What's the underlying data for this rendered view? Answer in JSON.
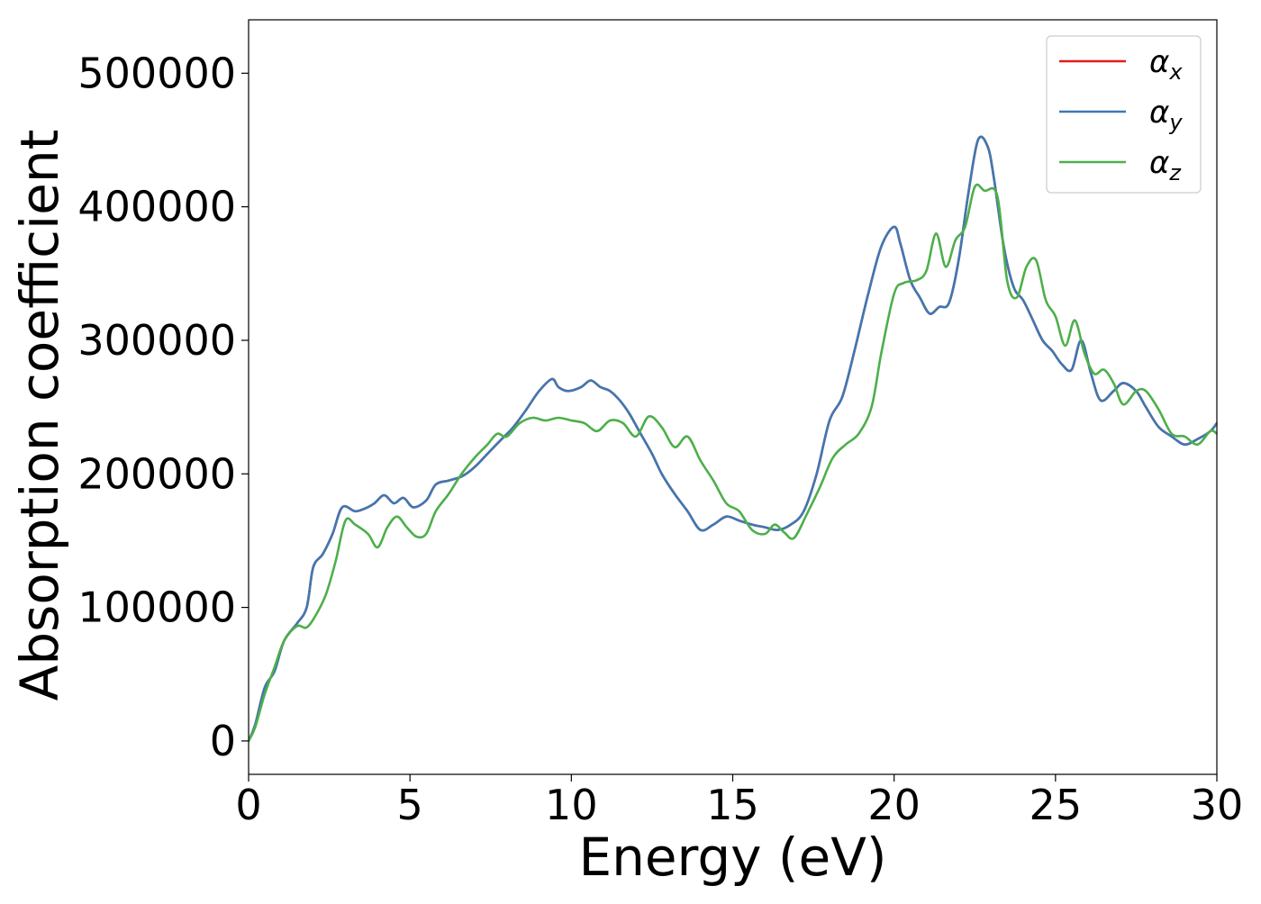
{
  "chart_data": {
    "type": "line",
    "title": "",
    "xlabel": "Energy (eV)",
    "ylabel": "Absorption coefficient",
    "xlim": [
      0,
      30
    ],
    "ylim": [
      -25000,
      540000
    ],
    "grid": false,
    "legend_position": "top-right",
    "x_ticks": [
      0,
      5,
      10,
      15,
      20,
      25,
      30
    ],
    "x_tick_labels": [
      "0",
      "5",
      "10",
      "15",
      "20",
      "25",
      "30"
    ],
    "y_ticks": [
      0,
      100000,
      200000,
      300000,
      400000,
      500000
    ],
    "y_tick_labels": [
      "0",
      "100000",
      "200000",
      "300000",
      "400000",
      "500000"
    ],
    "series": [
      {
        "name": "α",
        "subscript": "x",
        "color": "#e41a1c",
        "x": [
          0,
          0.2,
          0.5,
          0.8,
          1.1,
          1.5,
          1.8,
          2.0,
          2.3,
          2.6,
          2.9,
          3.3,
          3.6,
          3.9,
          4.2,
          4.5,
          4.8,
          5.1,
          5.5,
          5.8,
          6.2,
          6.6,
          7.0,
          7.4,
          7.8,
          8.2,
          8.6,
          9.0,
          9.4,
          9.6,
          9.9,
          10.3,
          10.6,
          10.9,
          11.2,
          11.5,
          11.8,
          12.1,
          12.5,
          12.8,
          13.2,
          13.6,
          14.0,
          14.4,
          14.8,
          15.2,
          15.6,
          16.0,
          16.4,
          16.8,
          17.2,
          17.6,
          18.0,
          18.4,
          18.8,
          19.2,
          19.6,
          20.0,
          20.2,
          20.5,
          20.8,
          21.1,
          21.4,
          21.7,
          22.0,
          22.3,
          22.6,
          22.9,
          23.1,
          23.4,
          23.7,
          24.0,
          24.3,
          24.6,
          24.9,
          25.2,
          25.5,
          25.8,
          26.1,
          26.4,
          26.8,
          27.1,
          27.5,
          27.8,
          28.2,
          28.6,
          29.0,
          29.4,
          29.8,
          30.0
        ],
        "values": [
          0,
          12000,
          40000,
          52000,
          75000,
          88000,
          100000,
          130000,
          140000,
          155000,
          175000,
          172000,
          174000,
          178000,
          184000,
          178000,
          182000,
          175000,
          180000,
          192000,
          195000,
          198000,
          205000,
          215000,
          225000,
          235000,
          248000,
          262000,
          271000,
          265000,
          262000,
          265000,
          270000,
          265000,
          262000,
          255000,
          245000,
          232000,
          215000,
          200000,
          185000,
          172000,
          158000,
          162000,
          168000,
          165000,
          162000,
          160000,
          158000,
          162000,
          172000,
          200000,
          240000,
          258000,
          295000,
          335000,
          370000,
          385000,
          372000,
          345000,
          332000,
          320000,
          325000,
          328000,
          360000,
          410000,
          450000,
          445000,
          420000,
          370000,
          340000,
          330000,
          315000,
          300000,
          292000,
          282000,
          278000,
          300000,
          275000,
          255000,
          262000,
          268000,
          262000,
          250000,
          235000,
          228000,
          222000,
          226000,
          232000,
          238000
        ]
      },
      {
        "name": "α",
        "subscript": "y",
        "color": "#3e78b2",
        "x": [
          0,
          0.2,
          0.5,
          0.8,
          1.1,
          1.5,
          1.8,
          2.0,
          2.3,
          2.6,
          2.9,
          3.3,
          3.6,
          3.9,
          4.2,
          4.5,
          4.8,
          5.1,
          5.5,
          5.8,
          6.2,
          6.6,
          7.0,
          7.4,
          7.8,
          8.2,
          8.6,
          9.0,
          9.4,
          9.6,
          9.9,
          10.3,
          10.6,
          10.9,
          11.2,
          11.5,
          11.8,
          12.1,
          12.5,
          12.8,
          13.2,
          13.6,
          14.0,
          14.4,
          14.8,
          15.2,
          15.6,
          16.0,
          16.4,
          16.8,
          17.2,
          17.6,
          18.0,
          18.4,
          18.8,
          19.2,
          19.6,
          20.0,
          20.2,
          20.5,
          20.8,
          21.1,
          21.4,
          21.7,
          22.0,
          22.3,
          22.6,
          22.9,
          23.1,
          23.4,
          23.7,
          24.0,
          24.3,
          24.6,
          24.9,
          25.2,
          25.5,
          25.8,
          26.1,
          26.4,
          26.8,
          27.1,
          27.5,
          27.8,
          28.2,
          28.6,
          29.0,
          29.4,
          29.8,
          30.0
        ],
        "values": [
          0,
          12000,
          40000,
          52000,
          75000,
          88000,
          100000,
          130000,
          140000,
          155000,
          175000,
          172000,
          174000,
          178000,
          184000,
          178000,
          182000,
          175000,
          180000,
          192000,
          195000,
          198000,
          205000,
          215000,
          225000,
          235000,
          248000,
          262000,
          271000,
          265000,
          262000,
          265000,
          270000,
          265000,
          262000,
          255000,
          245000,
          232000,
          215000,
          200000,
          185000,
          172000,
          158000,
          162000,
          168000,
          165000,
          162000,
          160000,
          158000,
          162000,
          172000,
          200000,
          240000,
          258000,
          295000,
          335000,
          370000,
          385000,
          372000,
          345000,
          332000,
          320000,
          325000,
          328000,
          360000,
          410000,
          450000,
          445000,
          420000,
          370000,
          340000,
          330000,
          315000,
          300000,
          292000,
          282000,
          278000,
          300000,
          275000,
          255000,
          262000,
          268000,
          262000,
          250000,
          235000,
          228000,
          222000,
          226000,
          232000,
          238000
        ]
      },
      {
        "name": "α",
        "subscript": "z",
        "color": "#4daf4a",
        "x": [
          0,
          0.2,
          0.5,
          0.8,
          1.1,
          1.5,
          1.8,
          2.1,
          2.4,
          2.7,
          3.0,
          3.3,
          3.7,
          4.0,
          4.3,
          4.6,
          4.9,
          5.2,
          5.5,
          5.8,
          6.2,
          6.6,
          7.0,
          7.4,
          7.7,
          8.0,
          8.4,
          8.8,
          9.2,
          9.6,
          10.0,
          10.4,
          10.8,
          11.2,
          11.6,
          12.0,
          12.4,
          12.8,
          13.2,
          13.6,
          14.0,
          14.4,
          14.8,
          15.2,
          15.6,
          16.0,
          16.3,
          16.6,
          16.9,
          17.3,
          17.7,
          18.1,
          18.5,
          18.9,
          19.3,
          19.6,
          20.0,
          20.3,
          20.7,
          21.0,
          21.3,
          21.6,
          21.9,
          22.2,
          22.5,
          22.8,
          23.2,
          23.5,
          23.8,
          24.1,
          24.4,
          24.7,
          25.0,
          25.3,
          25.6,
          25.9,
          26.2,
          26.5,
          26.8,
          27.1,
          27.5,
          27.8,
          28.2,
          28.6,
          29.0,
          29.4,
          29.8,
          30.0
        ],
        "values": [
          0,
          10000,
          35000,
          55000,
          75000,
          86000,
          85000,
          95000,
          110000,
          135000,
          165000,
          162000,
          155000,
          145000,
          160000,
          168000,
          160000,
          153000,
          155000,
          172000,
          185000,
          200000,
          212000,
          222000,
          230000,
          228000,
          238000,
          242000,
          240000,
          242000,
          240000,
          238000,
          232000,
          240000,
          238000,
          228000,
          243000,
          235000,
          220000,
          228000,
          210000,
          195000,
          178000,
          172000,
          158000,
          155000,
          162000,
          156000,
          152000,
          170000,
          190000,
          212000,
          222000,
          230000,
          250000,
          290000,
          335000,
          343000,
          345000,
          352000,
          380000,
          355000,
          375000,
          385000,
          415000,
          412000,
          408000,
          345000,
          332000,
          355000,
          360000,
          330000,
          318000,
          296000,
          315000,
          290000,
          275000,
          278000,
          268000,
          252000,
          262000,
          262000,
          248000,
          230000,
          228000,
          222000,
          232000,
          230000
        ]
      }
    ]
  }
}
